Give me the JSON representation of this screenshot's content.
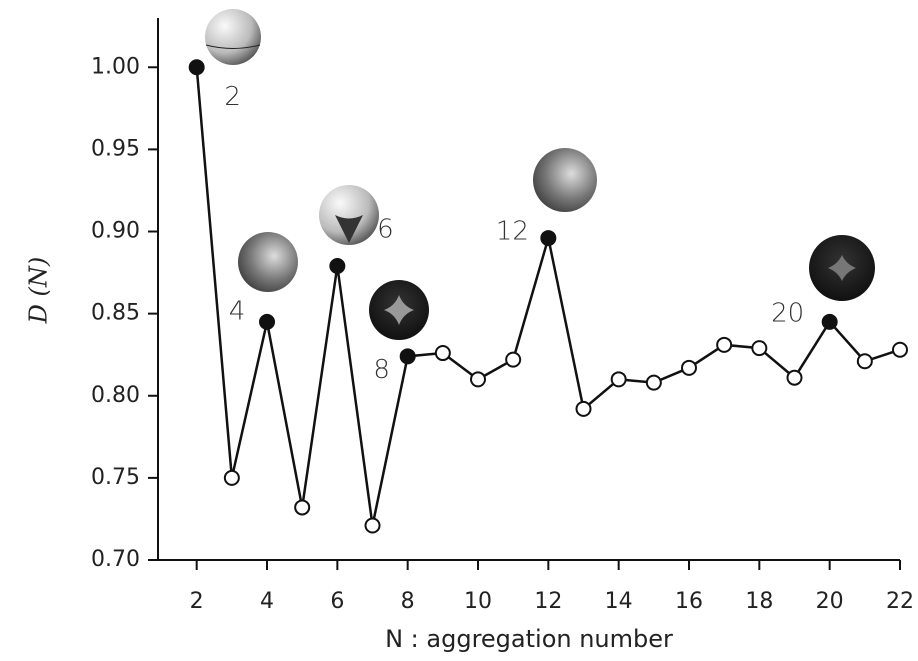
{
  "chart_data": {
    "type": "line",
    "xlabel": "N : aggregation number",
    "ylabel": "D (N)",
    "x": [
      2,
      3,
      4,
      5,
      6,
      7,
      8,
      9,
      10,
      11,
      12,
      13,
      14,
      15,
      16,
      17,
      18,
      19,
      20,
      21,
      22
    ],
    "series": [
      {
        "color": "#111111",
        "values": [
          1.0,
          0.75,
          0.845,
          0.732,
          0.879,
          0.721,
          0.824,
          0.826,
          0.81,
          0.822,
          0.896,
          0.792,
          0.81,
          0.808,
          0.817,
          0.831,
          0.829,
          0.811,
          0.845,
          0.821,
          0.828
        ]
      }
    ],
    "labeled_points": [
      2,
      4,
      6,
      8,
      12,
      20
    ],
    "xlim": [
      0.9,
      22
    ],
    "ylim": [
      0.7,
      1.03
    ],
    "xticks": [
      2,
      4,
      6,
      8,
      10,
      12,
      14,
      16,
      18,
      20,
      22
    ],
    "yticks": [
      {
        "value": 0.7,
        "label": "0.70"
      },
      {
        "value": 0.75,
        "label": "0.75"
      },
      {
        "value": 0.8,
        "label": "0.80"
      },
      {
        "value": 0.85,
        "label": "0.85"
      },
      {
        "value": 0.9,
        "label": "0.90"
      },
      {
        "value": 0.95,
        "label": "0.95"
      },
      {
        "value": 1.0,
        "label": "1.00"
      }
    ]
  }
}
